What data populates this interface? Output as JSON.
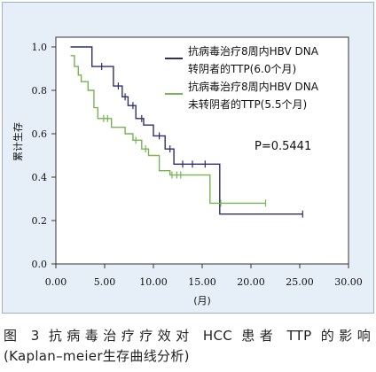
{
  "chart_data": {
    "type": "line",
    "subtype": "kaplan-meier step",
    "ylabel": "累计生存",
    "xlabel": "(月)",
    "xlim": [
      0,
      30
    ],
    "ylim": [
      0,
      1
    ],
    "xticks": [
      "0.00",
      "5.00",
      "10.00",
      "15.00",
      "20.00",
      "25.00",
      "30.00"
    ],
    "yticks": [
      "0.0",
      "0.2",
      "0.4",
      "0.6",
      "0.8",
      "1.0"
    ],
    "grid": false,
    "legend_position": "top-right",
    "annotation": "P=0.5441",
    "series": [
      {
        "name": "抗病毒治疗8周内HBV DNA转阴者的TTP(6.0个月)",
        "legend_lines": [
          "抗病毒治疗8周内HBV DNA",
          "转阴者的TTP(6.0个月)"
        ],
        "color": "#2e2d6e",
        "steps": [
          [
            1.5,
            1.0
          ],
          [
            3.7,
            0.91
          ],
          [
            5.9,
            0.82
          ],
          [
            6.8,
            0.77
          ],
          [
            7.4,
            0.73
          ],
          [
            8.2,
            0.67
          ],
          [
            9.0,
            0.64
          ],
          [
            10.0,
            0.59
          ],
          [
            11.2,
            0.53
          ],
          [
            12.1,
            0.46
          ],
          [
            16.8,
            0.23
          ],
          [
            25.3,
            0.23
          ]
        ],
        "censored": [
          [
            4.7,
            0.91
          ],
          [
            6.4,
            0.82
          ],
          [
            7.1,
            0.77
          ],
          [
            7.9,
            0.73
          ],
          [
            8.8,
            0.67
          ],
          [
            10.6,
            0.59
          ],
          [
            11.7,
            0.53
          ],
          [
            13.0,
            0.46
          ],
          [
            14.0,
            0.46
          ],
          [
            15.3,
            0.46
          ],
          [
            25.3,
            0.23
          ]
        ]
      },
      {
        "name": "抗病毒治疗8周内HBV DNA未转阴者的TTP(5.5个月)",
        "legend_lines": [
          "抗病毒治疗8周内HBV DNA",
          "未转阴者的TTP(5.5个月)"
        ],
        "color": "#7ab254",
        "steps": [
          [
            1.5,
            0.96
          ],
          [
            1.9,
            0.91
          ],
          [
            2.3,
            0.87
          ],
          [
            2.6,
            0.84
          ],
          [
            3.3,
            0.8
          ],
          [
            3.9,
            0.72
          ],
          [
            4.3,
            0.67
          ],
          [
            5.7,
            0.63
          ],
          [
            7.1,
            0.6
          ],
          [
            7.9,
            0.57
          ],
          [
            8.8,
            0.53
          ],
          [
            9.5,
            0.5
          ],
          [
            10.6,
            0.43
          ],
          [
            11.7,
            0.41
          ],
          [
            13.3,
            0.41
          ],
          [
            15.8,
            0.28
          ],
          [
            21.5,
            0.28
          ]
        ],
        "censored": [
          [
            4.9,
            0.67
          ],
          [
            5.3,
            0.67
          ],
          [
            8.2,
            0.57
          ],
          [
            9.2,
            0.53
          ],
          [
            11.9,
            0.41
          ],
          [
            12.4,
            0.41
          ],
          [
            12.8,
            0.41
          ],
          [
            16.9,
            0.28
          ],
          [
            21.5,
            0.28
          ]
        ]
      }
    ]
  },
  "caption": {
    "line1": "图 3 抗病毒治疗疗效对 HCC 患者 TTP 的影响",
    "line2": "(Kaplan–meier生存曲线分析)"
  }
}
